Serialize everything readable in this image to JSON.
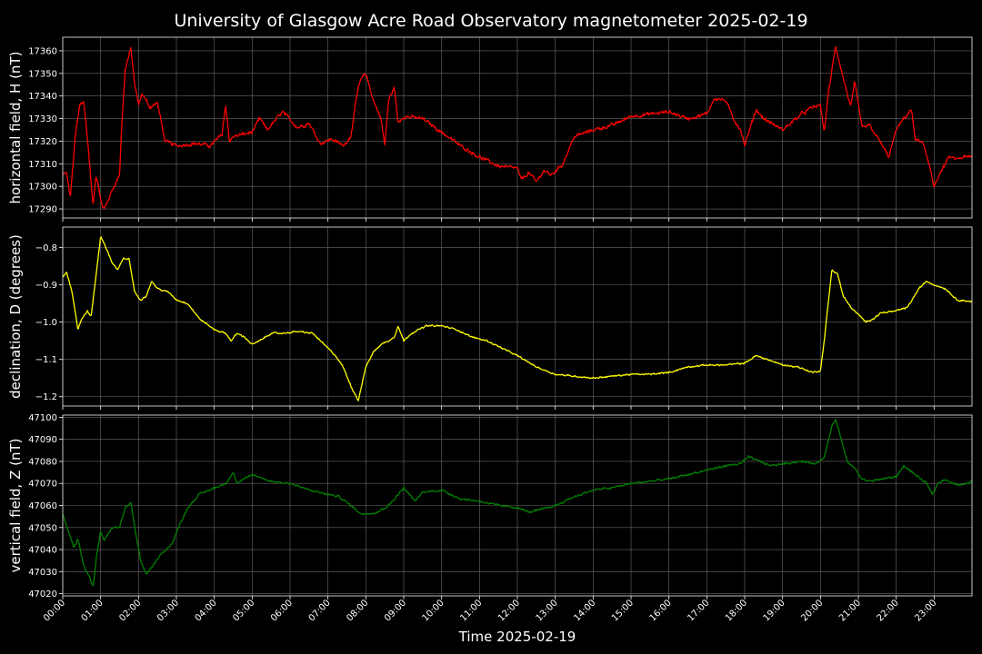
{
  "chart_data": {
    "title": "University of Glasgow Acre Road Observatory magnetometer 2025-02-19",
    "xlabel": "Time 2025-02-19",
    "xlim": [
      0,
      24
    ],
    "xtick_labels": [
      "00:00",
      "01:00",
      "02:00",
      "03:00",
      "04:00",
      "05:00",
      "06:00",
      "07:00",
      "08:00",
      "09:00",
      "10:00",
      "11:00",
      "12:00",
      "13:00",
      "14:00",
      "15:00",
      "16:00",
      "17:00",
      "18:00",
      "19:00",
      "20:00",
      "21:00",
      "22:00",
      "23:00"
    ],
    "panels": [
      {
        "type": "line",
        "ylabel": "horizontal field, H (nT)",
        "color": "#ff0000",
        "ylim": [
          17286,
          17366
        ],
        "yticks": [
          17290,
          17300,
          17310,
          17320,
          17330,
          17340,
          17350,
          17360
        ],
        "ytick_labels": [
          "17290",
          "17300",
          "17310",
          "17320",
          "17330",
          "17340",
          "17350",
          "17360"
        ],
        "noise": 1.2,
        "x": [
          0,
          0.1,
          0.2,
          0.33,
          0.45,
          0.55,
          0.67,
          0.8,
          0.88,
          0.95,
          1.02,
          1.1,
          1.2,
          1.35,
          1.5,
          1.55,
          1.65,
          1.8,
          1.9,
          2.0,
          2.1,
          2.3,
          2.5,
          2.7,
          3.0,
          3.5,
          3.9,
          4.2,
          4.3,
          4.4,
          4.5,
          5.0,
          5.2,
          5.4,
          5.8,
          6.2,
          6.5,
          6.8,
          7.1,
          7.4,
          7.6,
          7.7,
          7.8,
          7.9,
          8.0,
          8.2,
          8.4,
          8.5,
          8.6,
          8.75,
          8.85,
          9.0,
          9.5,
          10.0,
          10.5,
          11.0,
          11.5,
          12.0,
          12.1,
          12.3,
          12.5,
          12.7,
          12.9,
          13.2,
          13.5,
          14.0,
          14.5,
          15.0,
          15.5,
          16.0,
          16.5,
          17.0,
          17.2,
          17.5,
          17.7,
          17.9,
          18.0,
          18.3,
          18.5,
          18.8,
          19.0,
          19.5,
          19.8,
          20.0,
          20.1,
          20.2,
          20.4,
          20.5,
          20.6,
          20.8,
          20.9,
          21.1,
          21.3,
          21.6,
          21.8,
          22.0,
          22.2,
          22.4,
          22.5,
          22.7,
          22.9,
          23.0,
          23.2,
          23.4,
          23.6,
          23.8,
          24.0
        ],
        "y": [
          17305,
          17306,
          17295,
          17322,
          17336,
          17338,
          17318,
          17291,
          17305,
          17300,
          17292,
          17290,
          17294,
          17300,
          17305,
          17325,
          17352,
          17361,
          17345,
          17336,
          17341,
          17335,
          17337,
          17320,
          17318,
          17319,
          17318,
          17323,
          17336,
          17320,
          17322,
          17324,
          17330,
          17325,
          17333,
          17326,
          17328,
          17319,
          17321,
          17318,
          17322,
          17333,
          17344,
          17348,
          17350,
          17338,
          17330,
          17318,
          17338,
          17344,
          17328,
          17331,
          17330,
          17324,
          17318,
          17313,
          17309,
          17308,
          17303,
          17306,
          17302,
          17307,
          17305,
          17310,
          17322,
          17325,
          17327,
          17331,
          17332,
          17333,
          17330,
          17332,
          17339,
          17338,
          17330,
          17325,
          17318,
          17334,
          17330,
          17327,
          17325,
          17332,
          17335,
          17336,
          17324,
          17340,
          17362,
          17355,
          17348,
          17335,
          17346,
          17326,
          17327,
          17319,
          17313,
          17325,
          17330,
          17334,
          17321,
          17319,
          17308,
          17300,
          17307,
          17313,
          17312,
          17313,
          17313
        ]
      },
      {
        "type": "line",
        "ylabel": "declination, D (degrees)",
        "color": "#ffff00",
        "ylim": [
          -1.225,
          -0.745
        ],
        "yticks": [
          -1.2,
          -1.1,
          -1.0,
          -0.9,
          -0.8
        ],
        "ytick_labels": [
          "−1.2",
          "−1.1",
          "−1.0",
          "−0.9",
          "−0.8"
        ],
        "noise": 0.003,
        "x": [
          0,
          0.1,
          0.25,
          0.4,
          0.5,
          0.65,
          0.75,
          0.85,
          1.0,
          1.1,
          1.3,
          1.45,
          1.6,
          1.75,
          1.9,
          2.05,
          2.2,
          2.35,
          2.5,
          2.8,
          3.0,
          3.3,
          3.6,
          4.0,
          4.3,
          4.45,
          4.6,
          4.8,
          5.0,
          5.2,
          5.5,
          5.8,
          6.2,
          6.6,
          6.9,
          7.2,
          7.4,
          7.6,
          7.8,
          8.0,
          8.2,
          8.4,
          8.6,
          8.75,
          8.85,
          9.0,
          9.2,
          9.4,
          9.6,
          10.0,
          10.4,
          10.8,
          11.2,
          11.6,
          12.0,
          12.5,
          13.0,
          13.5,
          14.0,
          14.5,
          15.0,
          15.5,
          16.0,
          16.5,
          17.0,
          17.5,
          18.0,
          18.3,
          18.6,
          19.0,
          19.4,
          19.8,
          20.0,
          20.1,
          20.3,
          20.45,
          20.6,
          20.8,
          21.0,
          21.2,
          21.4,
          21.6,
          22.0,
          22.3,
          22.6,
          22.8,
          23.0,
          23.3,
          23.6,
          24.0
        ],
        "y": [
          -0.88,
          -0.865,
          -0.92,
          -1.02,
          -0.99,
          -0.97,
          -0.985,
          -0.9,
          -0.77,
          -0.79,
          -0.84,
          -0.86,
          -0.83,
          -0.83,
          -0.92,
          -0.94,
          -0.93,
          -0.89,
          -0.91,
          -0.92,
          -0.94,
          -0.95,
          -0.99,
          -1.02,
          -1.03,
          -1.05,
          -1.03,
          -1.04,
          -1.06,
          -1.05,
          -1.03,
          -1.03,
          -1.025,
          -1.03,
          -1.06,
          -1.09,
          -1.12,
          -1.17,
          -1.21,
          -1.12,
          -1.08,
          -1.06,
          -1.05,
          -1.04,
          -1.01,
          -1.05,
          -1.03,
          -1.02,
          -1.01,
          -1.01,
          -1.02,
          -1.04,
          -1.05,
          -1.07,
          -1.09,
          -1.12,
          -1.14,
          -1.145,
          -1.15,
          -1.145,
          -1.14,
          -1.14,
          -1.135,
          -1.12,
          -1.115,
          -1.115,
          -1.11,
          -1.09,
          -1.1,
          -1.115,
          -1.12,
          -1.135,
          -1.13,
          -1.05,
          -0.86,
          -0.87,
          -0.93,
          -0.96,
          -0.98,
          -1.0,
          -0.99,
          -0.975,
          -0.97,
          -0.96,
          -0.91,
          -0.89,
          -0.9,
          -0.91,
          -0.94,
          -0.945
        ]
      },
      {
        "type": "line",
        "ylabel": "vertical field, Z (nT)",
        "color": "#008000",
        "ylim": [
          47019,
          47101
        ],
        "yticks": [
          47020,
          47030,
          47040,
          47050,
          47060,
          47070,
          47080,
          47090,
          47100
        ],
        "ytick_labels": [
          "47020",
          "47030",
          "47040",
          "47050",
          "47060",
          "47070",
          "47080",
          "47090",
          "47100"
        ],
        "noise": 0.7,
        "x": [
          0,
          0.15,
          0.3,
          0.4,
          0.55,
          0.7,
          0.8,
          0.9,
          1.0,
          1.1,
          1.3,
          1.5,
          1.65,
          1.8,
          1.9,
          2.05,
          2.2,
          2.4,
          2.6,
          2.9,
          3.1,
          3.3,
          3.6,
          4.0,
          4.3,
          4.5,
          4.6,
          4.8,
          5.0,
          5.5,
          6.0,
          6.5,
          7.0,
          7.3,
          7.6,
          7.9,
          8.3,
          8.6,
          8.8,
          9.0,
          9.3,
          9.5,
          10.0,
          10.5,
          11.0,
          11.5,
          12.0,
          12.3,
          12.6,
          13.0,
          13.5,
          14.0,
          14.5,
          15.0,
          15.5,
          16.0,
          16.5,
          17.0,
          17.5,
          17.9,
          18.1,
          18.4,
          18.7,
          19.0,
          19.5,
          19.9,
          20.1,
          20.3,
          20.4,
          20.55,
          20.7,
          20.9,
          21.1,
          21.3,
          21.6,
          22.0,
          22.2,
          22.5,
          22.8,
          22.95,
          23.1,
          23.3,
          23.5,
          23.7,
          24.0
        ],
        "y": [
          47056,
          47048,
          47041,
          47045,
          47033,
          47028,
          47023,
          47038,
          47048,
          47044,
          47050,
          47050,
          47059,
          47061,
          47050,
          47035,
          47029,
          47033,
          47038,
          47043,
          47052,
          47059,
          47065,
          47068,
          47070,
          47075,
          47070,
          47072,
          47074,
          47071,
          47070,
          47067,
          47065,
          47064,
          47060,
          47056,
          47057,
          47060,
          47064,
          47068,
          47062,
          47066,
          47067,
          47063,
          47062,
          47060,
          47059,
          47057,
          47058,
          47060,
          47064,
          47067,
          47068,
          47070,
          47071,
          47072,
          47074,
          47076,
          47078,
          47079,
          47082,
          47080,
          47078,
          47079,
          47080,
          47079,
          47082,
          47096,
          47099,
          47090,
          47080,
          47077,
          47072,
          47071,
          47072,
          47073,
          47078,
          47074,
          47070,
          47065,
          47070,
          47072,
          47070,
          47069,
          47071
        ]
      }
    ]
  }
}
